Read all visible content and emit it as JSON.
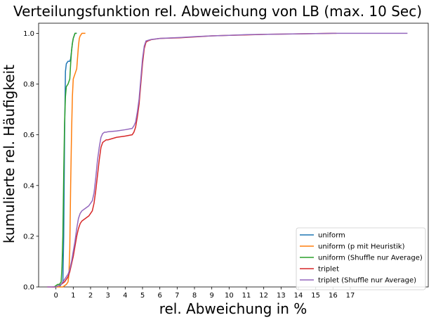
{
  "chart_data": {
    "type": "line",
    "title": "Verteilungsfunktion rel. Abweichung von LB (max. 10 Sec)",
    "xlabel": "rel. Abweichung in %",
    "ylabel": "kumulierte rel. Häufigkeit",
    "xlim": [
      -1.0,
      21.5
    ],
    "ylim": [
      0.0,
      1.04
    ],
    "xticks": [
      0,
      1,
      2,
      3,
      4,
      5,
      6,
      7,
      8,
      9,
      10,
      11,
      12,
      13,
      14,
      15,
      16,
      17
    ],
    "yticks": [
      0.0,
      0.2,
      0.4,
      0.6,
      0.8,
      1.0
    ],
    "xtick_labels": [
      "0",
      "1",
      "2",
      "3",
      "4",
      "5",
      "6",
      "7",
      "8",
      "9",
      "10",
      "11",
      "12",
      "13",
      "14",
      "15",
      "16",
      "17"
    ],
    "ytick_labels": [
      "0.0",
      "0.2",
      "0.4",
      "0.6",
      "0.8",
      "1.0"
    ],
    "grid": false,
    "legend_position": "lower-right",
    "series": [
      {
        "name": "uniform",
        "color": "#1f77b4",
        "x": [
          0.2,
          0.3,
          0.4,
          0.45,
          0.5,
          0.55,
          0.6,
          0.7,
          0.8,
          0.85,
          0.9,
          0.95,
          1.0,
          1.05,
          1.1,
          1.2
        ],
        "y": [
          0.0,
          0.01,
          0.02,
          0.2,
          0.6,
          0.85,
          0.88,
          0.89,
          0.89,
          0.9,
          0.93,
          0.96,
          0.98,
          0.99,
          1.0,
          1.0
        ]
      },
      {
        "name": "uniform (p mit Heuristik)",
        "color": "#ff7f0e",
        "x": [
          -0.2,
          0.4,
          0.6,
          0.7,
          0.75,
          0.8,
          0.85,
          0.9,
          0.95,
          1.0,
          1.1,
          1.2,
          1.3,
          1.35,
          1.4,
          1.5,
          1.6,
          1.7
        ],
        "y": [
          0.0,
          0.0,
          0.01,
          0.02,
          0.05,
          0.15,
          0.4,
          0.6,
          0.75,
          0.82,
          0.84,
          0.86,
          0.95,
          0.98,
          0.99,
          1.0,
          1.0,
          1.0
        ]
      },
      {
        "name": "uniform (Shuffle nur Average)",
        "color": "#2ca02c",
        "x": [
          -0.1,
          0.1,
          0.2,
          0.3,
          0.35,
          0.4,
          0.45,
          0.5,
          0.55,
          0.6,
          0.7,
          0.8,
          0.85,
          0.9,
          0.95,
          1.0,
          1.05,
          1.1,
          1.15,
          1.2
        ],
        "y": [
          0.0,
          0.01,
          0.01,
          0.02,
          0.08,
          0.2,
          0.45,
          0.65,
          0.75,
          0.79,
          0.8,
          0.82,
          0.88,
          0.93,
          0.96,
          0.98,
          0.99,
          1.0,
          1.0,
          1.0
        ]
      },
      {
        "name": "triplet",
        "color": "#d62728",
        "x": [
          -0.5,
          0.0,
          0.3,
          0.5,
          0.7,
          0.8,
          0.9,
          1.0,
          1.1,
          1.2,
          1.3,
          1.4,
          1.5,
          1.7,
          1.9,
          2.1,
          2.2,
          2.3,
          2.4,
          2.5,
          2.6,
          2.7,
          2.8,
          2.9,
          3.0,
          3.5,
          4.0,
          4.4,
          4.5,
          4.6,
          4.7,
          4.8,
          4.9,
          5.0,
          5.1,
          5.2,
          5.3,
          5.5,
          6.0,
          7.0,
          8.0,
          9.0,
          10.0,
          11.0,
          12.0,
          13.0,
          14.0,
          15.0,
          16.0,
          16.2
        ],
        "y": [
          0.0,
          0.0,
          0.01,
          0.02,
          0.04,
          0.06,
          0.09,
          0.12,
          0.16,
          0.2,
          0.23,
          0.25,
          0.26,
          0.27,
          0.28,
          0.3,
          0.33,
          0.38,
          0.44,
          0.5,
          0.55,
          0.57,
          0.575,
          0.58,
          0.58,
          0.59,
          0.595,
          0.6,
          0.61,
          0.63,
          0.67,
          0.72,
          0.8,
          0.88,
          0.94,
          0.965,
          0.97,
          0.975,
          0.98,
          0.982,
          0.986,
          0.99,
          0.992,
          0.994,
          0.996,
          0.997,
          0.998,
          0.999,
          1.0,
          1.0
        ]
      },
      {
        "name": "triplet (Shuffle nur Average)",
        "color": "#9467bd",
        "x": [
          -0.5,
          0.0,
          0.3,
          0.5,
          0.7,
          0.8,
          0.9,
          1.0,
          1.1,
          1.2,
          1.3,
          1.4,
          1.5,
          1.7,
          1.9,
          2.1,
          2.2,
          2.3,
          2.4,
          2.5,
          2.6,
          2.7,
          2.8,
          2.9,
          3.0,
          3.5,
          4.0,
          4.4,
          4.5,
          4.6,
          4.7,
          4.8,
          4.9,
          5.0,
          5.1,
          5.2,
          5.3,
          5.5,
          6.0,
          7.0,
          8.0,
          9.0,
          10.0,
          11.0,
          12.0,
          13.0,
          14.0,
          15.0,
          16.0,
          17.0,
          20.3
        ],
        "y": [
          0.0,
          0.0,
          0.01,
          0.03,
          0.05,
          0.07,
          0.1,
          0.14,
          0.18,
          0.23,
          0.27,
          0.29,
          0.3,
          0.31,
          0.32,
          0.34,
          0.37,
          0.43,
          0.5,
          0.55,
          0.59,
          0.605,
          0.61,
          0.61,
          0.612,
          0.615,
          0.62,
          0.625,
          0.635,
          0.65,
          0.69,
          0.74,
          0.82,
          0.9,
          0.95,
          0.97,
          0.972,
          0.976,
          0.98,
          0.983,
          0.987,
          0.99,
          0.992,
          0.995,
          0.996,
          0.997,
          0.998,
          0.999,
          1.0,
          1.0,
          1.0
        ]
      }
    ]
  }
}
